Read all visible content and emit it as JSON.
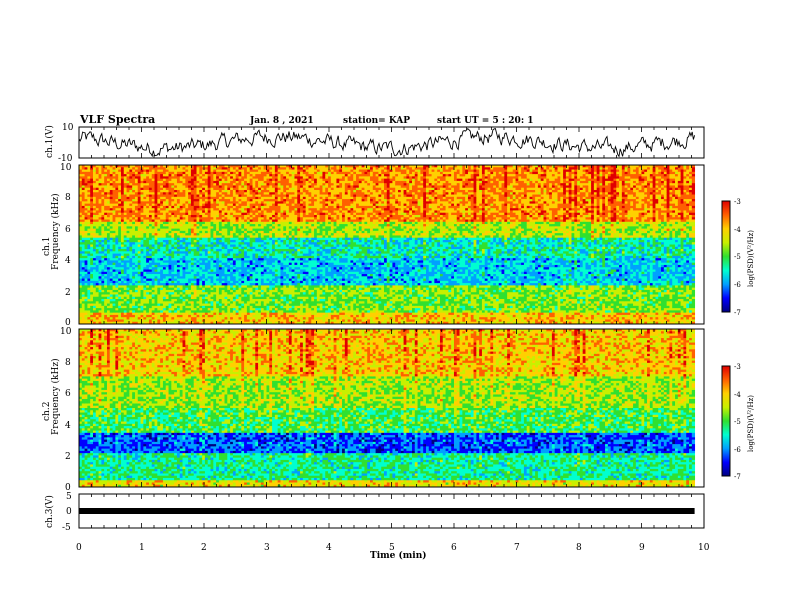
{
  "header": {
    "title": "VLF Spectra",
    "date": "Jan. 8 , 2021",
    "station": "station= KAP",
    "start": "start UT = 5 : 20: 1"
  },
  "chart_data": [
    {
      "type": "line",
      "panel": "ch1-waveform",
      "ylabel": "ch.1(V)",
      "ylim": [
        -10,
        10
      ],
      "ytick_labels": [
        "10",
        "-10"
      ],
      "xlim": [
        0,
        10
      ],
      "line_color": "#000000"
    },
    {
      "type": "heatmap",
      "panel": "ch1-spectrogram",
      "ylabel_channel": "ch.1",
      "ylabel": "Frequency (kHz)",
      "ylim": [
        0,
        10
      ],
      "ytick_labels": [
        "0",
        "2",
        "4",
        "6",
        "8",
        "10"
      ],
      "xlim": [
        0,
        10
      ],
      "data_extent_min": 9.85,
      "colorbar": {
        "label": "log(PSD)(V²/Hz)",
        "range": [
          -7,
          -3
        ],
        "tick_labels": [
          "-3",
          "-4",
          "-5",
          "-6",
          "-7"
        ]
      }
    },
    {
      "type": "heatmap",
      "panel": "ch2-spectrogram",
      "ylabel_channel": "ch.2",
      "ylabel": "Frequency (kHz)",
      "ylim": [
        0,
        10
      ],
      "ytick_labels": [
        "0",
        "2",
        "4",
        "6",
        "8",
        "10"
      ],
      "xlim": [
        0,
        10
      ],
      "data_extent_min": 9.85,
      "colorbar": {
        "label": "log(PSD)(V²/Hz)",
        "range": [
          -7,
          -3
        ],
        "tick_labels": [
          "-3",
          "-4",
          "-5",
          "-6",
          "-7"
        ]
      }
    },
    {
      "type": "line",
      "panel": "ch3-waveform",
      "ylabel": "ch.3(V)",
      "ylim": [
        -5,
        5
      ],
      "ytick_labels": [
        "5",
        "0",
        "-5"
      ],
      "xlim": [
        0,
        10
      ],
      "value_level": -0.3,
      "line_color": "#000000"
    }
  ],
  "xaxis": {
    "label": "Time (min)",
    "tick_labels": [
      "0",
      "1",
      "2",
      "3",
      "4",
      "5",
      "6",
      "7",
      "8",
      "9",
      "10"
    ]
  },
  "colors": {
    "colormap": [
      "#000080",
      "#0000ff",
      "#00a0ff",
      "#00ffd0",
      "#30e030",
      "#c8f000",
      "#ffd000",
      "#ff6000",
      "#e00000",
      "#ffffff"
    ]
  }
}
